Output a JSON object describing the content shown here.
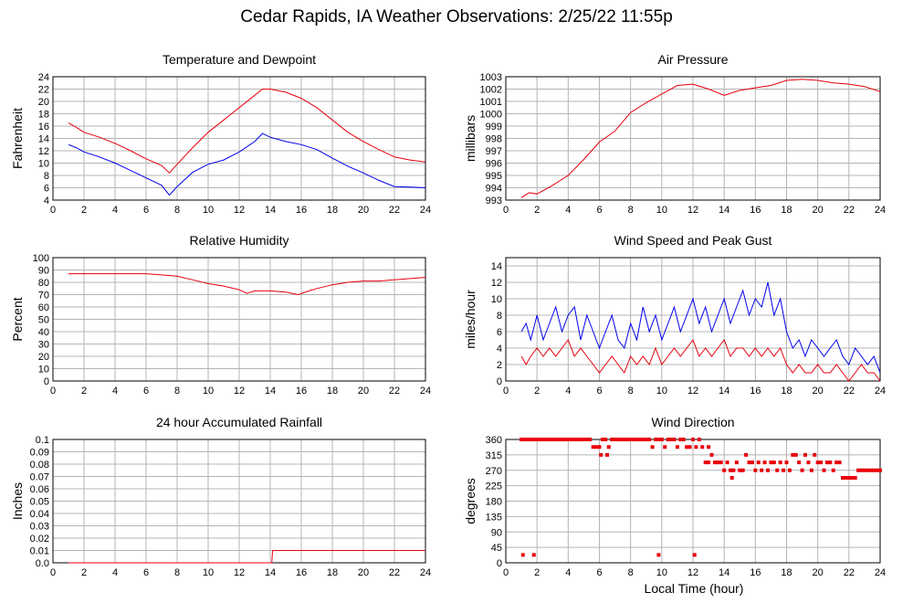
{
  "page": {
    "title": "Cedar Rapids, IA Weather Observations: 2/25/22 11:55p",
    "xlabel": "Local Time (hour)"
  },
  "chart_data": [
    {
      "type": "line",
      "title": "Temperature and Dewpoint",
      "ylabel": "Fahrenheit",
      "xlim": [
        0,
        24
      ],
      "ylim": [
        4,
        24
      ],
      "yticks": [
        4,
        6,
        8,
        10,
        12,
        14,
        16,
        18,
        20,
        22,
        24
      ],
      "xticks": [
        0,
        2,
        4,
        6,
        8,
        10,
        12,
        14,
        16,
        18,
        20,
        22,
        24
      ],
      "grid": true,
      "series": [
        {
          "color": "#e8000b",
          "x": [
            1,
            1.5,
            2,
            3,
            4,
            5,
            6,
            7,
            7.5,
            8,
            9,
            10,
            11,
            12,
            13,
            13.5,
            14,
            15,
            16,
            17,
            18,
            19,
            20,
            21,
            22,
            23,
            24
          ],
          "y": [
            16.5,
            15.8,
            15,
            14.2,
            13.2,
            12,
            10.7,
            9.6,
            8.4,
            9.8,
            12.5,
            15,
            17,
            19,
            21,
            22,
            22,
            21.5,
            20.5,
            19,
            17,
            15,
            13.5,
            12.2,
            11,
            10.5,
            10.2
          ]
        },
        {
          "color": "#0000ee",
          "x": [
            1,
            1.5,
            2,
            3,
            4,
            5,
            6,
            7,
            7.5,
            8,
            9,
            10,
            11,
            12,
            13,
            13.5,
            14,
            15,
            16,
            17,
            18,
            19,
            20,
            21,
            22,
            23,
            24
          ],
          "y": [
            13,
            12.5,
            11.8,
            11,
            10,
            8.8,
            7.6,
            6.4,
            4.8,
            6.2,
            8.5,
            9.8,
            10.5,
            11.8,
            13.5,
            14.8,
            14.2,
            13.5,
            13,
            12.2,
            10.8,
            9.5,
            8.4,
            7.2,
            6.2,
            6.1,
            6
          ]
        }
      ]
    },
    {
      "type": "line",
      "title": "Air Pressure",
      "ylabel": "millibars",
      "xlim": [
        0,
        24
      ],
      "ylim": [
        993,
        1003
      ],
      "yticks": [
        993,
        994,
        995,
        996,
        997,
        998,
        999,
        1000,
        1001,
        1002,
        1003
      ],
      "xticks": [
        0,
        2,
        4,
        6,
        8,
        10,
        12,
        14,
        16,
        18,
        20,
        22,
        24
      ],
      "grid": true,
      "series": [
        {
          "color": "#e8000b",
          "x": [
            1,
            1.5,
            2,
            3,
            4,
            5,
            6,
            7,
            8,
            9,
            10,
            11,
            12,
            13,
            14,
            15,
            16,
            17,
            18,
            19,
            20,
            21,
            22,
            23,
            24
          ],
          "y": [
            993.2,
            993.6,
            993.5,
            994.2,
            995,
            996.3,
            997.7,
            998.6,
            1000.1,
            1000.9,
            1001.6,
            1002.3,
            1002.4,
            1002,
            1001.5,
            1001.9,
            1002.1,
            1002.3,
            1002.7,
            1002.8,
            1002.7,
            1002.5,
            1002.4,
            1002.2,
            1001.8
          ]
        }
      ]
    },
    {
      "type": "line",
      "title": "Relative Humidity",
      "ylabel": "Percent",
      "xlim": [
        0,
        24
      ],
      "ylim": [
        0,
        100
      ],
      "yticks": [
        0,
        10,
        20,
        30,
        40,
        50,
        60,
        70,
        80,
        90,
        100
      ],
      "xticks": [
        0,
        2,
        4,
        6,
        8,
        10,
        12,
        14,
        16,
        18,
        20,
        22,
        24
      ],
      "grid": true,
      "series": [
        {
          "color": "#e8000b",
          "x": [
            1,
            2,
            3,
            4,
            5,
            6,
            7,
            8,
            9,
            10,
            11,
            12,
            12.5,
            13,
            14,
            15,
            15.8,
            16.5,
            17,
            18,
            19,
            20,
            21,
            22,
            23,
            24
          ],
          "y": [
            87,
            87,
            87,
            87,
            87,
            87,
            86,
            85,
            82,
            79,
            77,
            74,
            71,
            73,
            73,
            72,
            70,
            73,
            75,
            78,
            80,
            81,
            81,
            82,
            83,
            84
          ]
        }
      ]
    },
    {
      "type": "line",
      "title": "Wind Speed and Peak Gust",
      "ylabel": "miles/hour",
      "xlim": [
        0,
        24
      ],
      "ylim": [
        0,
        15
      ],
      "yticks": [
        0,
        2,
        4,
        6,
        8,
        10,
        12,
        14
      ],
      "xticks": [
        0,
        2,
        4,
        6,
        8,
        10,
        12,
        14,
        16,
        18,
        20,
        22,
        24
      ],
      "grid": true,
      "series": [
        {
          "color": "#0000ee",
          "x": [
            1,
            1.3,
            1.6,
            2,
            2.4,
            2.8,
            3.2,
            3.6,
            4,
            4.4,
            4.8,
            5.2,
            5.6,
            6,
            6.4,
            6.8,
            7.2,
            7.6,
            8,
            8.4,
            8.8,
            9.2,
            9.6,
            10,
            10.4,
            10.8,
            11.2,
            11.6,
            12,
            12.4,
            12.8,
            13.2,
            13.6,
            14,
            14.4,
            14.8,
            15.2,
            15.6,
            16,
            16.4,
            16.8,
            17.2,
            17.6,
            18,
            18.4,
            18.8,
            19.2,
            19.6,
            20,
            20.4,
            20.8,
            21.2,
            21.6,
            22,
            22.4,
            22.8,
            23.2,
            23.6,
            24
          ],
          "y": [
            6,
            7,
            5,
            8,
            5,
            7,
            9,
            6,
            8,
            9,
            5,
            8,
            6,
            4,
            6,
            8,
            5,
            4,
            7,
            5,
            9,
            6,
            8,
            5,
            7,
            9,
            6,
            8,
            10,
            7,
            9,
            6,
            8,
            10,
            7,
            9,
            11,
            8,
            10,
            9,
            12,
            8,
            10,
            6,
            4,
            5,
            3,
            5,
            4,
            3,
            4,
            5,
            3,
            2,
            4,
            3,
            2,
            3,
            1
          ]
        },
        {
          "color": "#e8000b",
          "x": [
            1,
            1.3,
            1.6,
            2,
            2.4,
            2.8,
            3.2,
            3.6,
            4,
            4.4,
            4.8,
            5.2,
            5.6,
            6,
            6.4,
            6.8,
            7.2,
            7.6,
            8,
            8.4,
            8.8,
            9.2,
            9.6,
            10,
            10.4,
            10.8,
            11.2,
            11.6,
            12,
            12.4,
            12.8,
            13.2,
            13.6,
            14,
            14.4,
            14.8,
            15.2,
            15.6,
            16,
            16.4,
            16.8,
            17.2,
            17.6,
            18,
            18.4,
            18.8,
            19.2,
            19.6,
            20,
            20.4,
            20.8,
            21.2,
            21.6,
            22,
            22.4,
            22.8,
            23.2,
            23.6,
            24
          ],
          "y": [
            3,
            2,
            3,
            4,
            3,
            4,
            3,
            4,
            5,
            3,
            4,
            3,
            2,
            1,
            2,
            3,
            2,
            1,
            3,
            2,
            3,
            2,
            4,
            2,
            3,
            4,
            3,
            4,
            5,
            3,
            4,
            3,
            4,
            5,
            3,
            4,
            4,
            3,
            4,
            3,
            4,
            3,
            4,
            2,
            1,
            2,
            1,
            1,
            2,
            1,
            1,
            2,
            1,
            0,
            1,
            2,
            1,
            1,
            0
          ]
        }
      ]
    },
    {
      "type": "line",
      "title": "24 hour Accumulated Rainfall",
      "ylabel": "Inches",
      "xlim": [
        0,
        24
      ],
      "ylim": [
        0,
        0.1
      ],
      "yticks": [
        0.0,
        0.01,
        0.02,
        0.03,
        0.04,
        0.05,
        0.06,
        0.07,
        0.08,
        0.09,
        0.1
      ],
      "ytick_labels": [
        "0.0",
        "0.01",
        "0.02",
        "0.03",
        "0.04",
        "0.05",
        "0.06",
        "0.07",
        "0.08",
        "0.09",
        "0.1"
      ],
      "xticks": [
        0,
        2,
        4,
        6,
        8,
        10,
        12,
        14,
        16,
        18,
        20,
        22,
        24
      ],
      "grid": true,
      "series": [
        {
          "color": "#e8000b",
          "x": [
            1,
            14.1,
            14.15,
            24
          ],
          "y": [
            0,
            0,
            0.01,
            0.01
          ]
        }
      ]
    },
    {
      "type": "scatter",
      "title": "Wind Direction",
      "ylabel": "degrees",
      "xlim": [
        0,
        24
      ],
      "ylim": [
        0,
        360
      ],
      "yticks": [
        0,
        45,
        90,
        135,
        180,
        225,
        270,
        315,
        360
      ],
      "xticks": [
        0,
        2,
        4,
        6,
        8,
        10,
        12,
        14,
        16,
        18,
        20,
        22,
        24
      ],
      "grid": true,
      "series": [
        {
          "color": "#e8000b",
          "x": [
            1,
            1.1,
            1.2,
            1.4,
            1.6,
            1.8,
            2,
            2.2,
            2.4,
            2.6,
            2.8,
            3,
            3.2,
            3.4,
            3.6,
            3.8,
            4,
            4.2,
            4.4,
            4.6,
            4.8,
            5,
            5.2,
            5.4,
            5.6,
            5.8,
            6,
            6.2,
            6.4,
            6.6,
            6.8,
            7,
            7.2,
            7.4,
            7.6,
            7.8,
            8,
            8.2,
            8.4,
            8.6,
            8.8,
            9,
            9.2,
            9.4,
            9.6,
            9.8,
            10,
            10.2,
            10.4,
            10.6,
            10.8,
            11,
            11.2,
            11.4,
            11.6,
            11.8,
            12,
            12.2,
            12.4,
            12.6,
            12.8,
            13,
            13.2,
            13.4,
            13.6,
            13.8,
            14,
            14.2,
            14.4,
            14.6,
            14.8,
            15,
            15.2,
            15.4,
            15.6,
            15.8,
            16,
            16.2,
            16.4,
            16.6,
            16.8,
            17,
            17.2,
            17.4,
            17.6,
            17.8,
            18,
            18.2,
            18.4,
            18.6,
            18.8,
            19,
            19.2,
            19.4,
            19.6,
            19.8,
            20,
            20.2,
            20.4,
            20.6,
            20.8,
            21,
            21.2,
            21.4,
            21.6,
            21.8,
            22,
            22.2,
            22.4,
            22.6,
            22.8,
            23,
            23.2,
            23.4,
            23.6,
            23.8,
            24,
            1.1,
            1.8,
            9.8,
            12.1,
            6.1,
            6.5,
            13,
            14.5
          ],
          "y": [
            360,
            360,
            360,
            360,
            360,
            360,
            360,
            360,
            360,
            360,
            360,
            360,
            360,
            360,
            360,
            360,
            360,
            360,
            360,
            360,
            360,
            360,
            360,
            360,
            338,
            338,
            338,
            360,
            360,
            338,
            360,
            360,
            360,
            360,
            360,
            360,
            360,
            360,
            360,
            360,
            360,
            360,
            360,
            338,
            360,
            360,
            360,
            338,
            360,
            360,
            360,
            338,
            360,
            360,
            338,
            338,
            360,
            338,
            360,
            338,
            293,
            293,
            315,
            293,
            293,
            293,
            270,
            293,
            270,
            270,
            293,
            270,
            270,
            315,
            293,
            293,
            270,
            293,
            270,
            293,
            270,
            293,
            293,
            270,
            293,
            270,
            293,
            270,
            315,
            315,
            293,
            270,
            315,
            293,
            270,
            315,
            293,
            293,
            270,
            293,
            293,
            270,
            293,
            293,
            248,
            248,
            248,
            248,
            248,
            270,
            270,
            270,
            270,
            270,
            270,
            270,
            270,
            23,
            23,
            23,
            23,
            315,
            315,
            338,
            248
          ]
        }
      ]
    }
  ]
}
